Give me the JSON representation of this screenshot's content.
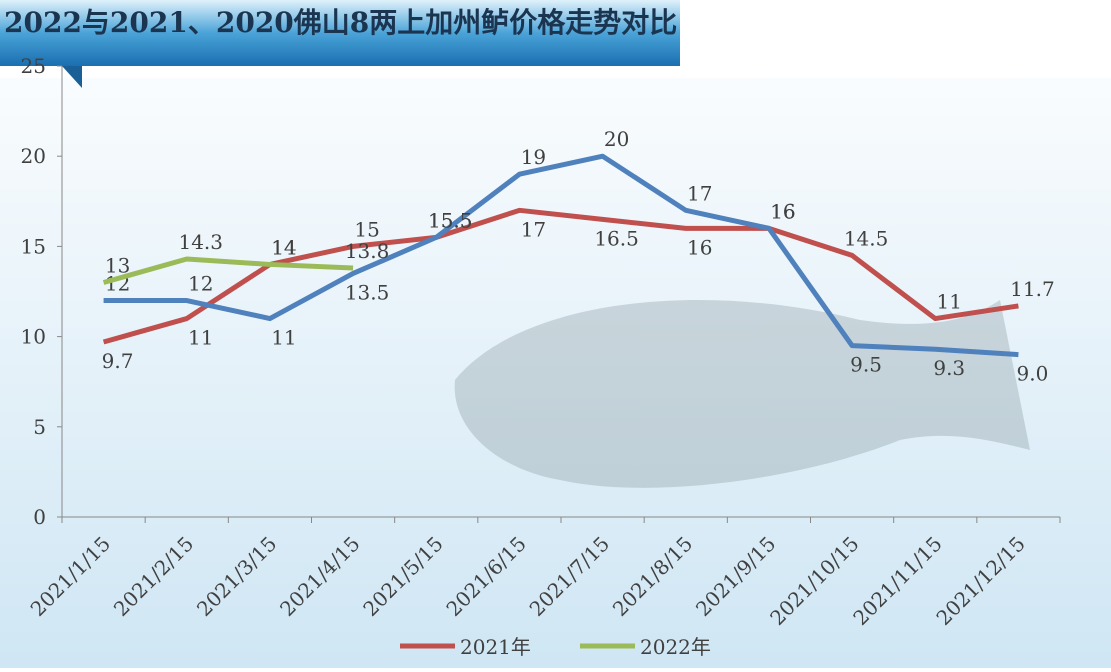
{
  "chart_data": {
    "type": "line",
    "title": "2022与2021、2020佛山8两上加州鲈价格走势对比",
    "categories": [
      "2021/1/15",
      "2021/2/15",
      "2021/3/15",
      "2021/4/15",
      "2021/5/15",
      "2021/6/15",
      "2021/7/15",
      "2021/8/15",
      "2021/9/15",
      "2021/10/15",
      "2021/11/15",
      "2021/12/15"
    ],
    "series": [
      {
        "name": "2021年",
        "color": "#c0504d",
        "values": [
          9.7,
          11,
          14,
          15,
          15.5,
          17,
          16.5,
          16,
          16,
          14.5,
          11,
          11.7
        ]
      },
      {
        "color": "#4f81bd",
        "values": [
          12,
          12,
          11,
          13.5,
          15.5,
          19,
          20,
          17,
          16,
          9.5,
          9.3,
          9
        ],
        "value_labels": [
          "12",
          "12",
          "11",
          "13.5",
          "15.5",
          "19",
          "20",
          "17",
          "16",
          "9.5",
          "9.3",
          "9.0"
        ]
      },
      {
        "name": "2022年",
        "color": "#9bbb59",
        "values": [
          13,
          14.3,
          14,
          13.8,
          null,
          null,
          null,
          null,
          null,
          null,
          null,
          null
        ]
      }
    ],
    "ylim": [
      0,
      25
    ],
    "yticks": [
      0,
      5,
      10,
      15,
      20,
      25
    ],
    "legend": "bottom"
  }
}
